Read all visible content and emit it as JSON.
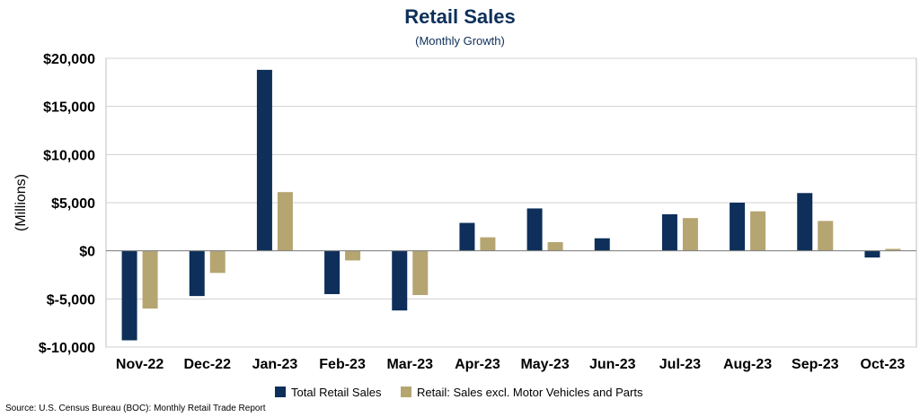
{
  "chart_data": {
    "type": "bar",
    "title": "Retail Sales",
    "subtitle": "(Monthly Growth)",
    "ylabel": "(Millions)",
    "xlabel": "",
    "ylim": [
      -10000,
      20000
    ],
    "yticks": [
      20000,
      15000,
      10000,
      5000,
      0,
      -5000,
      -10000
    ],
    "ytick_labels": [
      "$20,000",
      "$15,000",
      "$10,000",
      "$5,000",
      "$0",
      "$-5,000",
      "$-10,000"
    ],
    "categories": [
      "Nov-22",
      "Dec-22",
      "Jan-23",
      "Feb-23",
      "Mar-23",
      "Apr-23",
      "May-23",
      "Jun-23",
      "Jul-23",
      "Aug-23",
      "Sep-23",
      "Oct-23"
    ],
    "series": [
      {
        "name": "Total Retail Sales",
        "color": "#0d2f5a",
        "values": [
          -9300,
          -4700,
          18800,
          -4500,
          -6200,
          2900,
          4400,
          1300,
          3800,
          5000,
          6000,
          -700
        ]
      },
      {
        "name": "Retail: Sales excl. Motor Vehicles and Parts",
        "color": "#b5a571",
        "values": [
          -6000,
          -2300,
          6100,
          -1000,
          -4600,
          1400,
          900,
          0,
          3400,
          4100,
          3100,
          200
        ]
      }
    ],
    "grid": true,
    "legend_position": "bottom-center",
    "source": "Source: U.S. Census Bureau (BOC): Monthly Retail Trade Report"
  }
}
